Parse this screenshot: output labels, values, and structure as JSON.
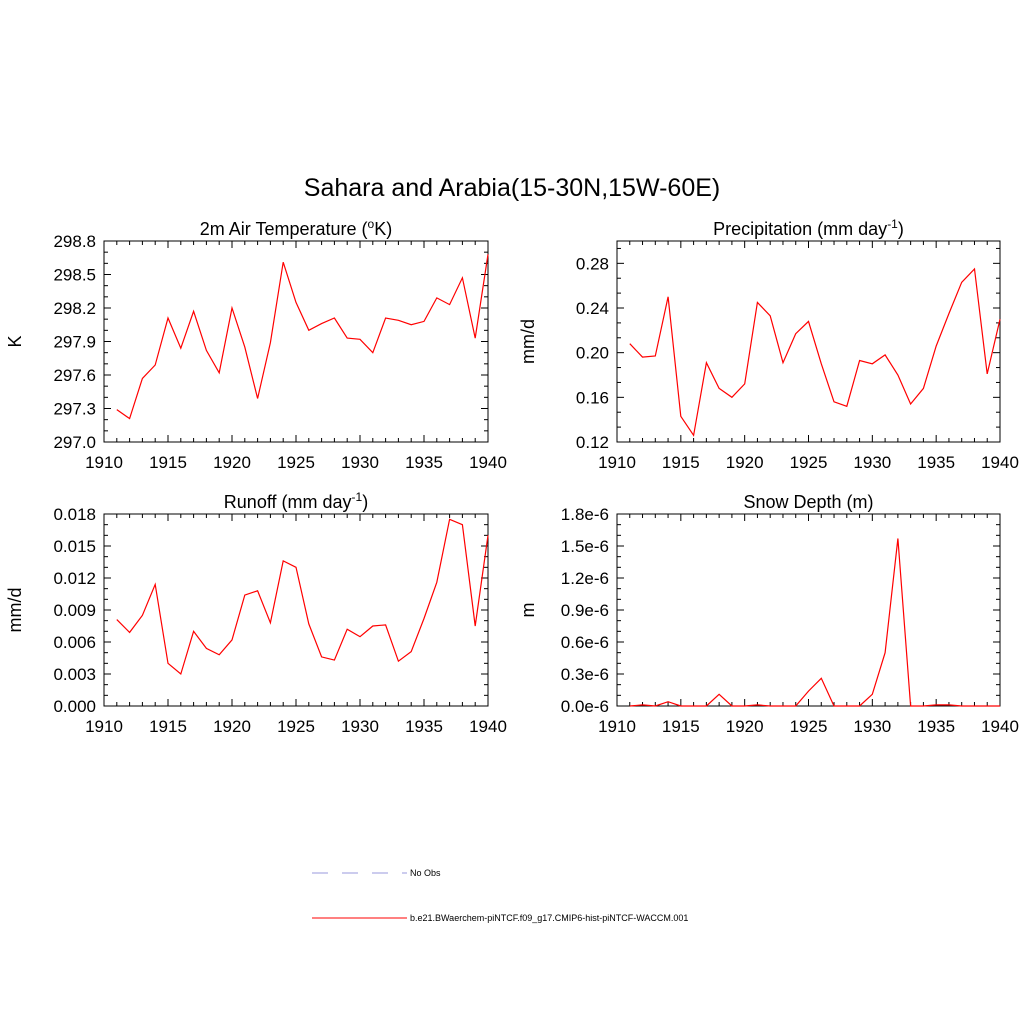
{
  "figure": {
    "title": "Sahara and Arabia(15-30N,15W-60E)"
  },
  "legend": {
    "items": [
      {
        "label": "No Obs",
        "color": "#9999dd",
        "style": "dashed"
      },
      {
        "label": "b.e21.BWaerchem-piNTCF.f09_g17.CMIP6-hist-piNTCF-WACCM.001",
        "color": "#ff0000",
        "style": "solid"
      }
    ]
  },
  "chart_data": [
    {
      "type": "line",
      "title": "2m Air Temperature (oK)",
      "title_parts": {
        "main": "2m Air Temperature (",
        "sup": "o",
        "post": "K)"
      },
      "ylabel": "K",
      "xlim": [
        1910,
        1940
      ],
      "ylim": [
        297.0,
        298.8
      ],
      "xticks": [
        "1910",
        "1915",
        "1920",
        "1925",
        "1930",
        "1935",
        "1940"
      ],
      "xtick_values": [
        1910,
        1915,
        1920,
        1925,
        1930,
        1935,
        1940
      ],
      "yticks": [
        "297.0",
        "297.3",
        "297.6",
        "297.9",
        "298.2",
        "298.5",
        "298.8"
      ],
      "ytick_values": [
        297.0,
        297.3,
        297.6,
        297.9,
        298.2,
        298.5,
        298.8
      ],
      "color": "#ff0000",
      "x": [
        1911,
        1912,
        1913,
        1914,
        1915,
        1916,
        1917,
        1918,
        1919,
        1920,
        1921,
        1922,
        1923,
        1924,
        1925,
        1926,
        1927,
        1928,
        1929,
        1930,
        1931,
        1932,
        1933,
        1934,
        1935,
        1936,
        1937,
        1938,
        1939,
        1940
      ],
      "values": [
        297.29,
        297.21,
        297.57,
        297.69,
        298.11,
        297.84,
        298.17,
        297.82,
        297.62,
        298.2,
        297.85,
        297.39,
        297.89,
        298.61,
        298.25,
        298.0,
        298.06,
        298.11,
        297.93,
        297.92,
        297.8,
        298.11,
        298.09,
        298.05,
        298.08,
        298.29,
        298.23,
        298.47,
        297.93,
        298.68
      ]
    },
    {
      "type": "line",
      "title": "Precipitation (mm day-1)",
      "title_parts": {
        "main": "Precipitation (mm day",
        "sup": "-1",
        "post": ")"
      },
      "ylabel": "mm/d",
      "xlim": [
        1910,
        1940
      ],
      "ylim": [
        0.12,
        0.3
      ],
      "xticks": [
        "1910",
        "1915",
        "1920",
        "1925",
        "1930",
        "1935",
        "1940"
      ],
      "xtick_values": [
        1910,
        1915,
        1920,
        1925,
        1930,
        1935,
        1940
      ],
      "yticks": [
        "0.12",
        "0.16",
        "0.20",
        "0.24",
        "0.28"
      ],
      "ytick_values": [
        0.12,
        0.16,
        0.2,
        0.24,
        0.28
      ],
      "color": "#ff0000",
      "x": [
        1911,
        1912,
        1913,
        1914,
        1915,
        1916,
        1917,
        1918,
        1919,
        1920,
        1921,
        1922,
        1923,
        1924,
        1925,
        1926,
        1927,
        1928,
        1929,
        1930,
        1931,
        1932,
        1933,
        1934,
        1935,
        1936,
        1937,
        1938,
        1939,
        1940
      ],
      "values": [
        0.208,
        0.196,
        0.197,
        0.25,
        0.143,
        0.126,
        0.191,
        0.168,
        0.16,
        0.172,
        0.245,
        0.233,
        0.191,
        0.217,
        0.228,
        0.19,
        0.156,
        0.152,
        0.193,
        0.19,
        0.198,
        0.18,
        0.154,
        0.168,
        0.206,
        0.235,
        0.263,
        0.275,
        0.181,
        0.23
      ]
    },
    {
      "type": "line",
      "title": "Runoff (mm day-1)",
      "title_parts": {
        "main": "Runoff (mm day",
        "sup": "-1",
        "post": ")"
      },
      "ylabel": "mm/d",
      "xlim": [
        1910,
        1940
      ],
      "ylim": [
        0.0,
        0.018
      ],
      "xticks": [
        "1910",
        "1915",
        "1920",
        "1925",
        "1930",
        "1935",
        "1940"
      ],
      "xtick_values": [
        1910,
        1915,
        1920,
        1925,
        1930,
        1935,
        1940
      ],
      "yticks": [
        "0.000",
        "0.003",
        "0.006",
        "0.009",
        "0.012",
        "0.015",
        "0.018"
      ],
      "ytick_values": [
        0.0,
        0.003,
        0.006,
        0.009,
        0.012,
        0.015,
        0.018
      ],
      "color": "#ff0000",
      "x": [
        1911,
        1912,
        1913,
        1914,
        1915,
        1916,
        1917,
        1918,
        1919,
        1920,
        1921,
        1922,
        1923,
        1924,
        1925,
        1926,
        1927,
        1928,
        1929,
        1930,
        1931,
        1932,
        1933,
        1934,
        1935,
        1936,
        1937,
        1938,
        1939,
        1940
      ],
      "values": [
        0.0081,
        0.0069,
        0.0085,
        0.0114,
        0.004,
        0.003,
        0.007,
        0.0054,
        0.0048,
        0.0062,
        0.0104,
        0.0108,
        0.0078,
        0.0136,
        0.013,
        0.0077,
        0.0046,
        0.0043,
        0.0072,
        0.0065,
        0.0075,
        0.0076,
        0.0042,
        0.0051,
        0.0082,
        0.0116,
        0.0175,
        0.017,
        0.0075,
        0.016
      ]
    },
    {
      "type": "line",
      "title": "Snow Depth (m)",
      "ylabel": "m",
      "xlim": [
        1910,
        1940
      ],
      "ylim": [
        0.0,
        1.8e-06
      ],
      "xticks": [
        "1910",
        "1915",
        "1920",
        "1925",
        "1930",
        "1935",
        "1940"
      ],
      "xtick_values": [
        1910,
        1915,
        1920,
        1925,
        1930,
        1935,
        1940
      ],
      "yticks": [
        "0.0e-6",
        "0.3e-6",
        "0.6e-6",
        "0.9e-6",
        "1.2e-6",
        "1.5e-6",
        "1.8e-6"
      ],
      "ytick_values": [
        0.0,
        3e-07,
        6e-07,
        9e-07,
        1.2e-06,
        1.5e-06,
        1.8e-06
      ],
      "color": "#ff0000",
      "x": [
        1911,
        1912,
        1913,
        1914,
        1915,
        1916,
        1917,
        1918,
        1919,
        1920,
        1921,
        1922,
        1923,
        1924,
        1925,
        1926,
        1927,
        1928,
        1929,
        1930,
        1931,
        1932,
        1933,
        1934,
        1935,
        1936,
        1937,
        1938,
        1939,
        1940
      ],
      "values": [
        0.0,
        1e-08,
        0.0,
        4e-08,
        0.0,
        0.0,
        0.0,
        1.1e-07,
        0.0,
        0.0,
        1e-08,
        0.0,
        0.0,
        0.0,
        1.4e-07,
        2.6e-07,
        0.0,
        0.0,
        0.0,
        1.1e-07,
        5e-07,
        1.57e-06,
        0.0,
        0.0,
        1e-08,
        1e-08,
        0.0,
        0.0,
        0.0,
        0.0
      ]
    }
  ]
}
